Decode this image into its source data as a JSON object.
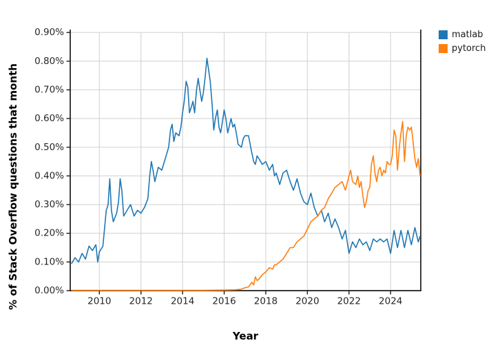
{
  "chart_data": {
    "type": "line",
    "title": "",
    "xlabel": "Year",
    "ylabel": "% of Stack Overflow questions that month",
    "xlim": [
      2008.6,
      2025.45
    ],
    "ylim": [
      0,
      0.91
    ],
    "grid": true,
    "legend_position": "top-right-outside",
    "colors": {
      "background": "#ffffff",
      "grid": "#d4d4d4",
      "axis": "#1a1a1a",
      "text": "#262626"
    },
    "xticks": {
      "values": [
        2010,
        2012,
        2014,
        2016,
        2018,
        2020,
        2022,
        2024
      ],
      "labels": [
        "2010",
        "2012",
        "2014",
        "2016",
        "2018",
        "2020",
        "2022",
        "2024"
      ]
    },
    "yticks": {
      "values": [
        0,
        0.1,
        0.2,
        0.3,
        0.4,
        0.5,
        0.6,
        0.7,
        0.8,
        0.9
      ],
      "labels": [
        "0.00%",
        "0.10%",
        "0.20%",
        "0.30%",
        "0.40%",
        "0.50%",
        "0.60%",
        "0.70%",
        "0.80%",
        "0.90%"
      ]
    },
    "series": [
      {
        "name": "matlab",
        "color": "#1f77b4",
        "x": [
          2008.67,
          2008.83,
          2009.0,
          2009.17,
          2009.33,
          2009.5,
          2009.67,
          2009.83,
          2009.92,
          2010.0,
          2010.17,
          2010.33,
          2010.42,
          2010.5,
          2010.58,
          2010.67,
          2010.83,
          2010.92,
          2011.0,
          2011.08,
          2011.17,
          2011.33,
          2011.5,
          2011.67,
          2011.83,
          2012.0,
          2012.17,
          2012.33,
          2012.42,
          2012.5,
          2012.58,
          2012.67,
          2012.83,
          2013.0,
          2013.17,
          2013.33,
          2013.42,
          2013.5,
          2013.58,
          2013.67,
          2013.83,
          2013.92,
          2014.0,
          2014.08,
          2014.17,
          2014.25,
          2014.33,
          2014.42,
          2014.5,
          2014.58,
          2014.67,
          2014.75,
          2014.83,
          2014.92,
          2015.0,
          2015.08,
          2015.17,
          2015.25,
          2015.33,
          2015.42,
          2015.5,
          2015.58,
          2015.67,
          2015.75,
          2015.83,
          2015.92,
          2016.0,
          2016.08,
          2016.17,
          2016.33,
          2016.42,
          2016.5,
          2016.58,
          2016.67,
          2016.83,
          2016.92,
          2017.0,
          2017.17,
          2017.33,
          2017.42,
          2017.5,
          2017.58,
          2017.67,
          2017.83,
          2018.0,
          2018.17,
          2018.33,
          2018.42,
          2018.5,
          2018.67,
          2018.83,
          2019.0,
          2019.17,
          2019.33,
          2019.42,
          2019.5,
          2019.67,
          2019.83,
          2020.0,
          2020.17,
          2020.33,
          2020.5,
          2020.67,
          2020.83,
          2021.0,
          2021.17,
          2021.33,
          2021.5,
          2021.67,
          2021.83,
          2022.0,
          2022.17,
          2022.33,
          2022.5,
          2022.67,
          2022.83,
          2023.0,
          2023.17,
          2023.33,
          2023.5,
          2023.67,
          2023.83,
          2024.0,
          2024.17,
          2024.33,
          2024.5,
          2024.67,
          2024.83,
          2025.0,
          2025.17,
          2025.33,
          2025.42
        ],
        "y": [
          0.095,
          0.115,
          0.1,
          0.13,
          0.11,
          0.155,
          0.14,
          0.16,
          0.1,
          0.135,
          0.155,
          0.28,
          0.3,
          0.39,
          0.28,
          0.24,
          0.27,
          0.31,
          0.39,
          0.35,
          0.26,
          0.28,
          0.3,
          0.26,
          0.28,
          0.27,
          0.29,
          0.32,
          0.4,
          0.45,
          0.42,
          0.38,
          0.43,
          0.42,
          0.46,
          0.5,
          0.56,
          0.58,
          0.52,
          0.55,
          0.54,
          0.57,
          0.62,
          0.66,
          0.73,
          0.71,
          0.62,
          0.64,
          0.66,
          0.62,
          0.7,
          0.74,
          0.7,
          0.66,
          0.69,
          0.74,
          0.81,
          0.77,
          0.73,
          0.65,
          0.56,
          0.6,
          0.63,
          0.57,
          0.55,
          0.59,
          0.63,
          0.6,
          0.55,
          0.6,
          0.57,
          0.58,
          0.55,
          0.51,
          0.5,
          0.53,
          0.54,
          0.54,
          0.48,
          0.45,
          0.44,
          0.47,
          0.46,
          0.44,
          0.45,
          0.42,
          0.44,
          0.4,
          0.41,
          0.37,
          0.41,
          0.42,
          0.38,
          0.35,
          0.37,
          0.39,
          0.34,
          0.31,
          0.3,
          0.34,
          0.29,
          0.26,
          0.28,
          0.24,
          0.27,
          0.22,
          0.25,
          0.22,
          0.18,
          0.21,
          0.13,
          0.17,
          0.15,
          0.18,
          0.16,
          0.17,
          0.14,
          0.18,
          0.17,
          0.18,
          0.17,
          0.18,
          0.13,
          0.21,
          0.15,
          0.21,
          0.15,
          0.21,
          0.16,
          0.22,
          0.17,
          0.19
        ]
      },
      {
        "name": "pytorch",
        "color": "#ff7f0e",
        "x": [
          2008.67,
          2010.0,
          2012.0,
          2014.0,
          2015.0,
          2016.0,
          2016.5,
          2016.83,
          2017.0,
          2017.17,
          2017.33,
          2017.42,
          2017.5,
          2017.58,
          2017.67,
          2017.83,
          2018.0,
          2018.17,
          2018.33,
          2018.42,
          2018.5,
          2018.67,
          2018.83,
          2019.0,
          2019.17,
          2019.33,
          2019.5,
          2019.67,
          2019.83,
          2020.0,
          2020.17,
          2020.33,
          2020.5,
          2020.67,
          2020.83,
          2021.0,
          2021.17,
          2021.33,
          2021.5,
          2021.67,
          2021.83,
          2022.0,
          2022.08,
          2022.17,
          2022.33,
          2022.42,
          2022.5,
          2022.58,
          2022.67,
          2022.75,
          2022.83,
          2022.92,
          2023.0,
          2023.08,
          2023.17,
          2023.25,
          2023.33,
          2023.42,
          2023.5,
          2023.58,
          2023.67,
          2023.75,
          2023.83,
          2023.92,
          2024.0,
          2024.08,
          2024.17,
          2024.25,
          2024.33,
          2024.42,
          2024.5,
          2024.58,
          2024.67,
          2024.75,
          2024.83,
          2024.92,
          2025.0,
          2025.08,
          2025.17,
          2025.25,
          2025.33,
          2025.42
        ],
        "y": [
          0.001,
          0.001,
          0.001,
          0.001,
          0.001,
          0.002,
          0.003,
          0.005,
          0.01,
          0.013,
          0.029,
          0.02,
          0.048,
          0.035,
          0.04,
          0.055,
          0.065,
          0.08,
          0.075,
          0.09,
          0.09,
          0.1,
          0.11,
          0.13,
          0.15,
          0.15,
          0.17,
          0.18,
          0.19,
          0.215,
          0.24,
          0.25,
          0.26,
          0.28,
          0.29,
          0.32,
          0.34,
          0.36,
          0.37,
          0.38,
          0.35,
          0.4,
          0.42,
          0.38,
          0.37,
          0.4,
          0.36,
          0.38,
          0.33,
          0.29,
          0.31,
          0.35,
          0.36,
          0.44,
          0.47,
          0.41,
          0.38,
          0.42,
          0.43,
          0.4,
          0.42,
          0.41,
          0.45,
          0.44,
          0.44,
          0.47,
          0.56,
          0.54,
          0.42,
          0.5,
          0.55,
          0.59,
          0.45,
          0.54,
          0.57,
          0.56,
          0.57,
          0.52,
          0.46,
          0.43,
          0.46,
          0.4
        ]
      }
    ]
  }
}
